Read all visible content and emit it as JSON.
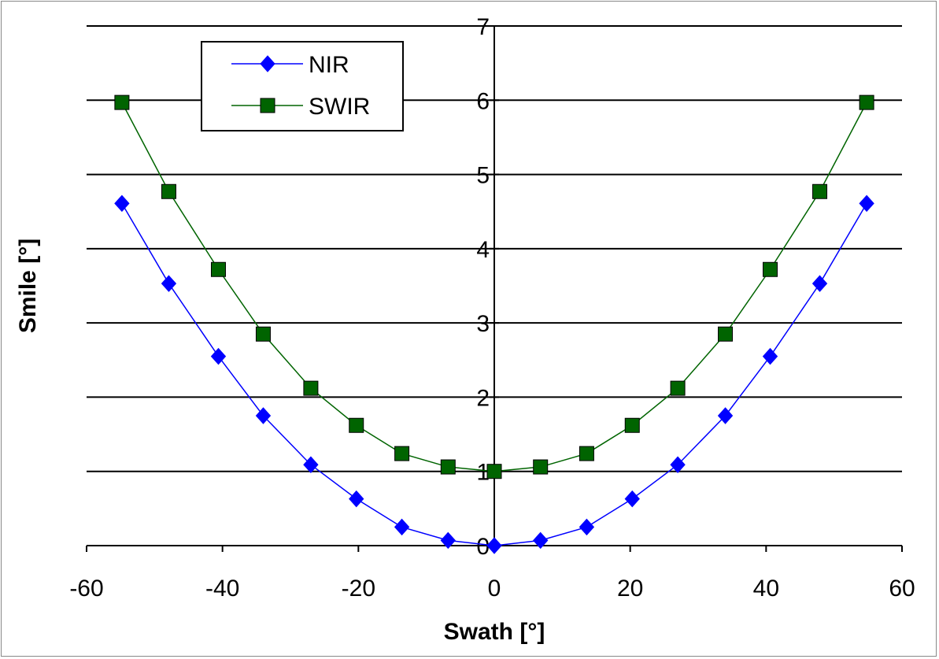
{
  "chart_data": {
    "type": "line",
    "title": "",
    "xlabel": "Swath [°]",
    "ylabel": "Smile [°]",
    "xlim": [
      -60,
      60
    ],
    "ylim": [
      0,
      7
    ],
    "xticks": [
      "-60",
      "-40",
      "-20",
      "0",
      "20",
      "40",
      "60"
    ],
    "yticks": [
      "0",
      "1",
      "2",
      "3",
      "4",
      "5",
      "6",
      "7"
    ],
    "grid": "horizontal",
    "legend_position": "top-left",
    "x": [
      -54.8,
      -47.9,
      -40.6,
      -34,
      -27,
      -20.3,
      -13.6,
      -6.8,
      0,
      6.8,
      13.6,
      20.3,
      27,
      34,
      40.6,
      47.9,
      54.8
    ],
    "series": [
      {
        "name": "NIR",
        "color": "#0000ff",
        "marker": "diamond",
        "values": [
          4.61,
          3.53,
          2.55,
          1.75,
          1.09,
          0.63,
          0.25,
          0.07,
          0,
          0.07,
          0.25,
          0.63,
          1.09,
          1.75,
          2.55,
          3.53,
          4.61
        ]
      },
      {
        "name": "SWIR",
        "color": "#006400",
        "marker": "square",
        "values": [
          5.97,
          4.77,
          3.72,
          2.85,
          2.12,
          1.62,
          1.24,
          1.06,
          1.0,
          1.06,
          1.24,
          1.62,
          2.12,
          2.85,
          3.72,
          4.77,
          5.97
        ]
      }
    ]
  }
}
